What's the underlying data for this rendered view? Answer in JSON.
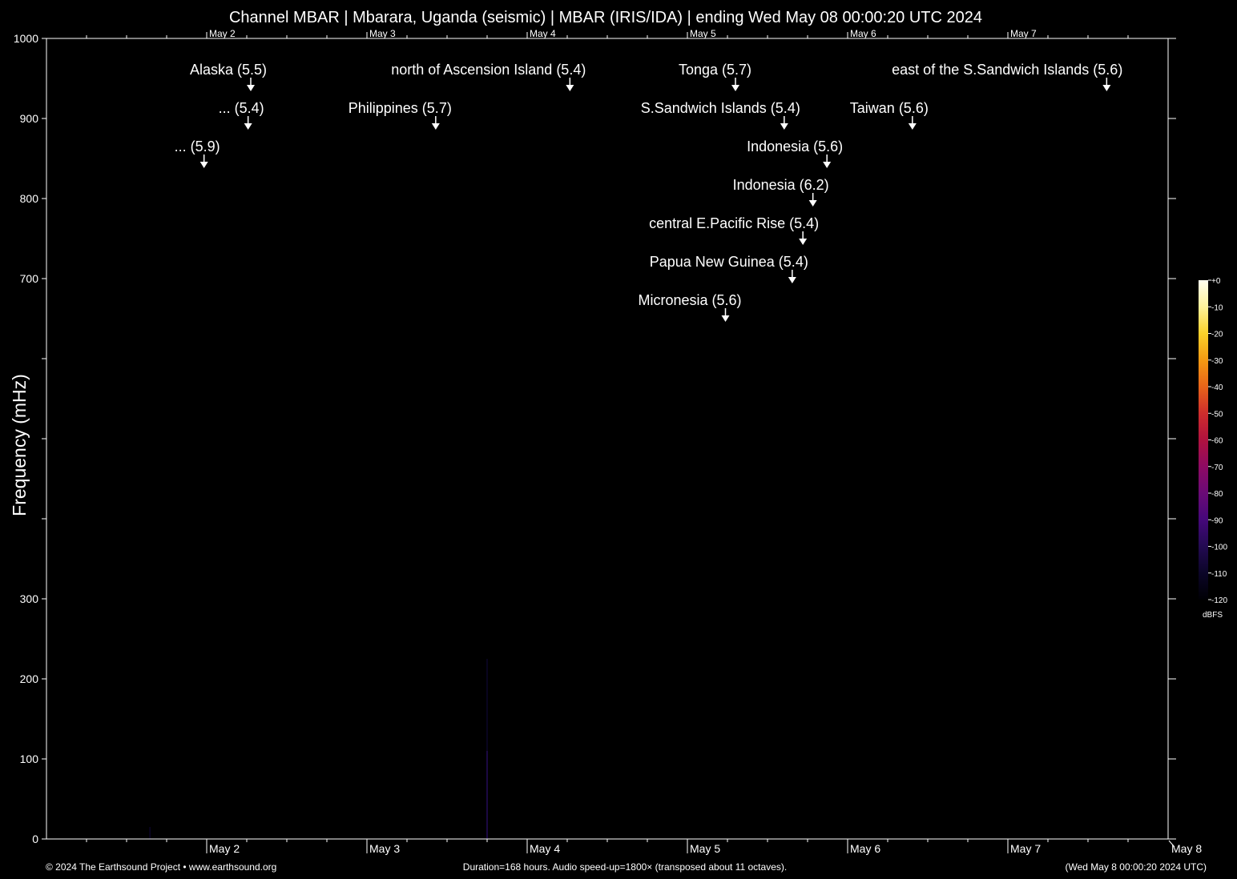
{
  "chart_data": {
    "type": "heatmap",
    "title": "Channel MBAR | Mbarara, Uganda (seismic) | MBAR (IRIS/IDA) | ending Wed May 08 00:00:20 UTC 2024",
    "ylabel": "Frequency (mHz)",
    "xlabel": "",
    "ylim": [
      0,
      1000
    ],
    "y_ticks": [
      0,
      100,
      200,
      300,
      400,
      500,
      600,
      700,
      800,
      900,
      1000
    ],
    "y_tick_labels": [
      "0",
      "100",
      "200",
      "300",
      "",
      "",
      "",
      "700",
      "800",
      "900",
      "1000"
    ],
    "x_unit": "hours since May 1 00:00:20 UTC",
    "xlim": [
      0,
      168
    ],
    "x_date_ticks": [
      {
        "label": "May  2",
        "hour": 24
      },
      {
        "label": "May  3",
        "hour": 48
      },
      {
        "label": "May  4",
        "hour": 72
      },
      {
        "label": "May  5",
        "hour": 96
      },
      {
        "label": "May  6",
        "hour": 120
      },
      {
        "label": "May  7",
        "hour": 144
      }
    ],
    "x_end_label": "May  8",
    "x_minor_tick_hours": 6,
    "events": [
      {
        "label": "Alaska (5.5)",
        "hour": 30.6,
        "row": 0
      },
      {
        "label": "north of Ascension Island (5.4)",
        "hour": 78.4,
        "row": 0
      },
      {
        "label": "Tonga (5.7)",
        "hour": 103.2,
        "row": 0
      },
      {
        "label": "east of the S.Sandwich Islands (5.6)",
        "hour": 158.8,
        "row": 0
      },
      {
        "label": "... (5.4)",
        "hour": 30.2,
        "row": 1
      },
      {
        "label": "Philippines (5.7)",
        "hour": 58.3,
        "row": 1
      },
      {
        "label": "S.Sandwich Islands (5.4)",
        "hour": 110.5,
        "row": 1
      },
      {
        "label": "Taiwan (5.6)",
        "hour": 129.7,
        "row": 1
      },
      {
        "label": "... (5.9)",
        "hour": 23.6,
        "row": 2
      },
      {
        "label": "Indonesia (5.6)",
        "hour": 116.9,
        "row": 2
      },
      {
        "label": "Indonesia (6.2)",
        "hour": 114.8,
        "row": 3
      },
      {
        "label": "central E.Pacific Rise (5.4)",
        "hour": 113.3,
        "row": 4
      },
      {
        "label": "Papua New Guinea (5.4)",
        "hour": 111.7,
        "row": 5
      },
      {
        "label": "Micronesia (5.6)",
        "hour": 101.7,
        "row": 6
      }
    ],
    "faint_signals": [
      {
        "hour": 15.5,
        "fmax": 15,
        "dbfs": -110
      },
      {
        "hour": 66.0,
        "fmax": 225,
        "dbfs": -108
      },
      {
        "hour": 66.0,
        "fmax": 110,
        "dbfs": -95
      }
    ],
    "colorbar": {
      "label": "dBFS",
      "min": -120,
      "max": 0,
      "ticks": [
        "+0",
        "-10",
        "-20",
        "-30",
        "-40",
        "-50",
        "-60",
        "-70",
        "-80",
        "-90",
        "-100",
        "-110",
        "-120"
      ],
      "stops": [
        {
          "value": 0,
          "color": "#fffff0"
        },
        {
          "value": -10,
          "color": "#fdf29a"
        },
        {
          "value": -20,
          "color": "#f9d12a"
        },
        {
          "value": -30,
          "color": "#f49a12"
        },
        {
          "value": -40,
          "color": "#e86419"
        },
        {
          "value": -50,
          "color": "#cf2d2c"
        },
        {
          "value": -60,
          "color": "#b0123e"
        },
        {
          "value": -70,
          "color": "#8e0a63"
        },
        {
          "value": -80,
          "color": "#6a0a76"
        },
        {
          "value": -90,
          "color": "#45087a"
        },
        {
          "value": -100,
          "color": "#230a52"
        },
        {
          "value": -110,
          "color": "#0b0528"
        },
        {
          "value": -120,
          "color": "#000004"
        }
      ]
    }
  },
  "footer": {
    "copyright": "© 2024 The Earthsound Project • www.earthsound.org",
    "duration": "Duration=168 hours. Audio speed-up=1800× (transposed about 11 octaves).",
    "timestamp": "(Wed May  8 00:00:20 2024 UTC)"
  },
  "colors": {
    "background": "#000000",
    "foreground": "#ffffff"
  }
}
